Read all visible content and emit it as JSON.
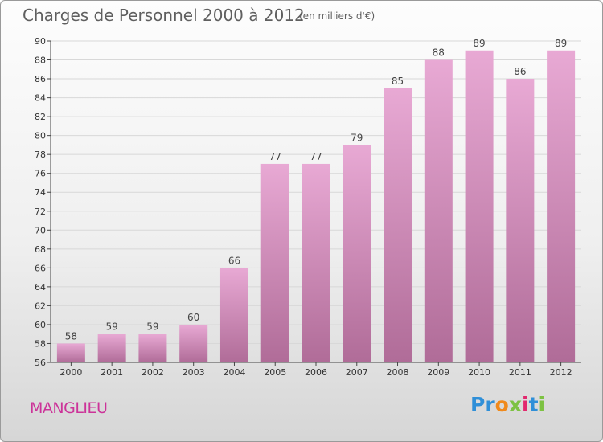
{
  "header": {
    "title": "Charges de Personnel 2000 à 2012",
    "subtitle": "(en milliers d'€)"
  },
  "footer": {
    "commune": "MANGLIEU",
    "logo_letters": [
      "P",
      "r",
      "o",
      "x",
      "i",
      "t",
      "i"
    ],
    "logo_colors": [
      "#2f8fd8",
      "#2f8fd8",
      "#f08a1c",
      "#7dc242",
      "#e2286e",
      "#2f8fd8",
      "#7dc242"
    ]
  },
  "colors": {
    "bar_light": "#e8a9d4",
    "bar_dark": "#b06c98",
    "grid": "#d8d8d8",
    "commune": "#cc3399"
  },
  "chart_data": {
    "type": "bar",
    "title": "Charges de Personnel 2000 à 2012",
    "subtitle": "(en milliers d'€)",
    "xlabel": "",
    "ylabel": "",
    "categories": [
      "2000",
      "2001",
      "2002",
      "2003",
      "2004",
      "2005",
      "2006",
      "2007",
      "2008",
      "2009",
      "2010",
      "2011",
      "2012"
    ],
    "values": [
      58,
      59,
      59,
      60,
      66,
      77,
      77,
      79,
      85,
      88,
      89,
      86,
      89
    ],
    "ylim": [
      56,
      90
    ],
    "yticks": [
      56,
      58,
      60,
      62,
      64,
      66,
      68,
      70,
      72,
      74,
      76,
      78,
      80,
      82,
      84,
      86,
      88,
      90
    ],
    "grid": true,
    "legend": "none"
  }
}
